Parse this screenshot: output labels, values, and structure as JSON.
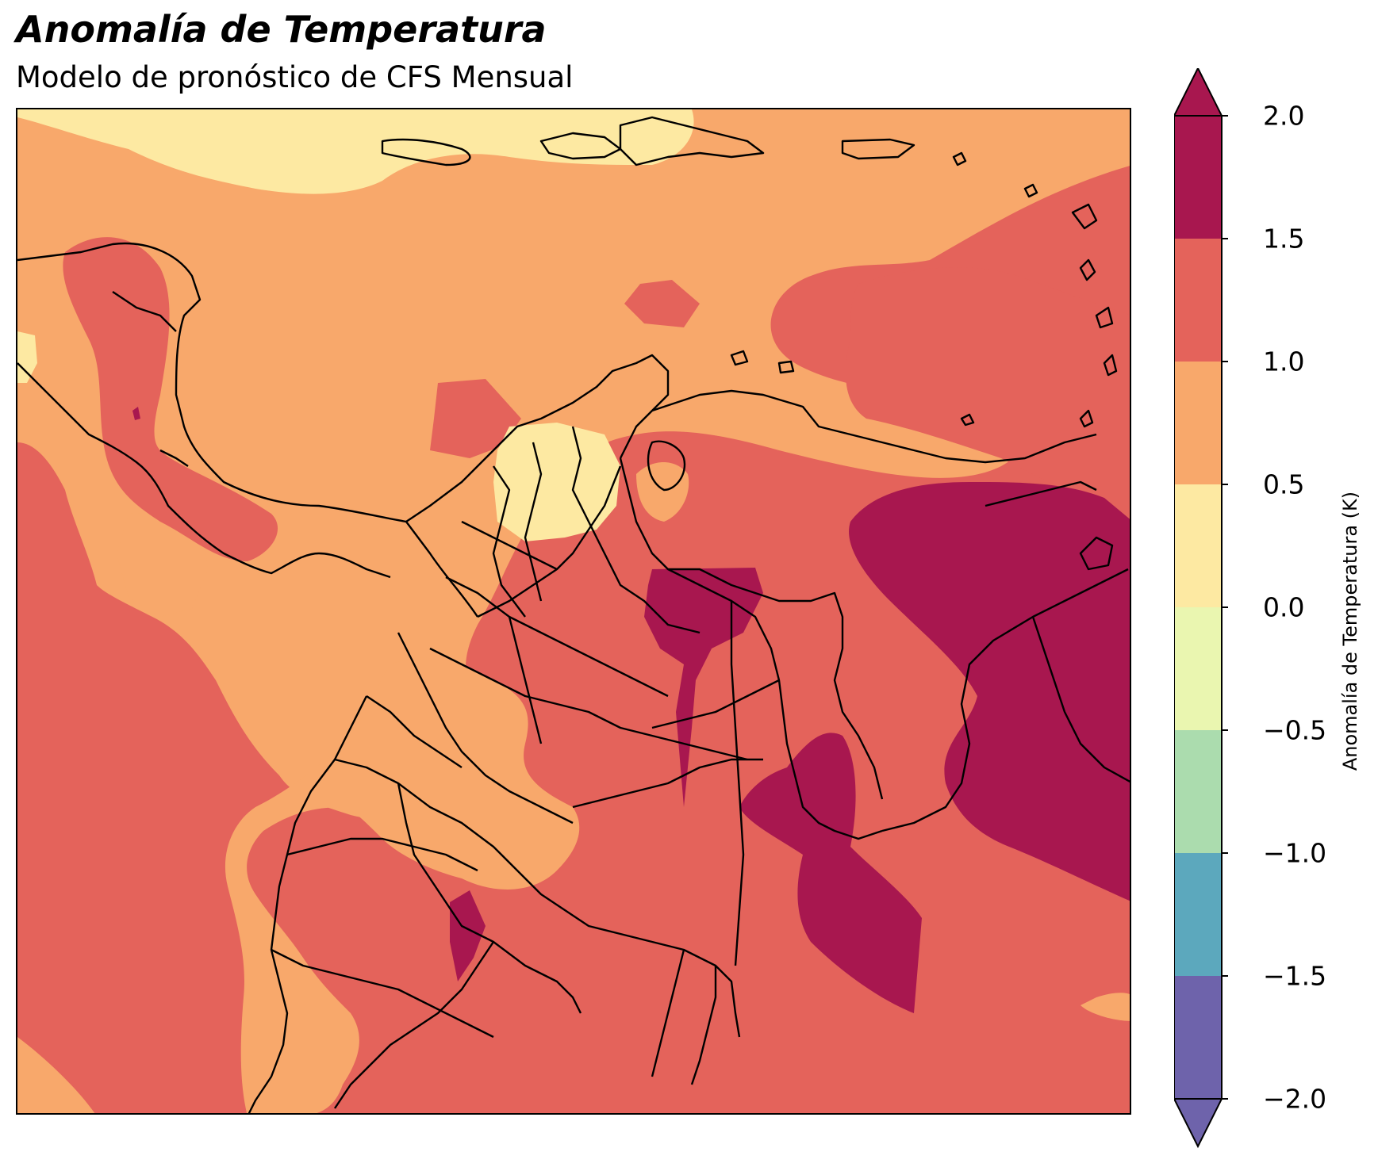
{
  "title": "Anomalía de Temperatura",
  "subtitle": "Modelo de pronóstico de CFS Mensual",
  "colorbar": {
    "label": "Anomalía de Temperatura (K)",
    "ticks": [
      "2.0",
      "1.5",
      "1.0",
      "0.5",
      "0.0",
      "−0.5",
      "−1.0",
      "−1.5",
      "−2.0"
    ],
    "levels": [
      {
        "range": "> 2.0",
        "color": "#a8174f"
      },
      {
        "range": "1.5 – 2.0",
        "color": "#a8174f"
      },
      {
        "range": "1.0 – 1.5",
        "color": "#e4635b"
      },
      {
        "range": "0.5 – 1.0",
        "color": "#f8a86b"
      },
      {
        "range": "0.0 – 0.5",
        "color": "#fde9a2"
      },
      {
        "range": "−0.5 – 0.0",
        "color": "#eaf6b0"
      },
      {
        "range": "−1.0 – −0.5",
        "color": "#abdcae"
      },
      {
        "range": "−1.5 – −1.0",
        "color": "#5ca8bd"
      },
      {
        "range": "−2.0 – −1.5",
        "color": "#6e63ab"
      },
      {
        "range": "< −2.0",
        "color": "#6e63ab"
      }
    ]
  },
  "map": {
    "region": "Caribe / Centroamérica / Colombia",
    "borders": "black",
    "colors": {
      "dark": "#a8174f",
      "red": "#e4635b",
      "orange": "#f8a86b",
      "yellow": "#fde9a2"
    }
  }
}
